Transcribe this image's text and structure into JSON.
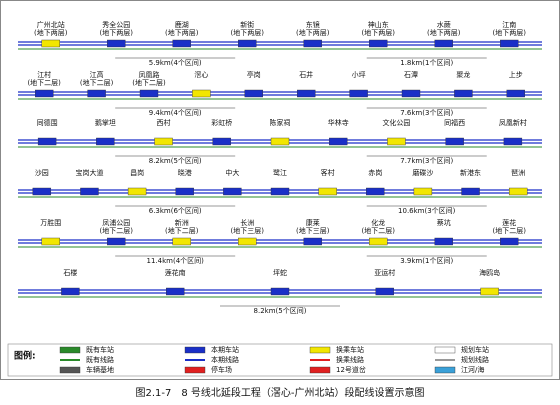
{
  "rows": [
    {
      "stations": [
        {
          "name": "广州北站",
          "level": "(地下两层)",
          "color": "#f2e600"
        },
        {
          "name": "秀全公园",
          "level": "(地下两层)",
          "color": "#1a2fc7"
        },
        {
          "name": "鹿湖",
          "level": "(地下两层)",
          "color": "#1a2fc7"
        },
        {
          "name": "新街",
          "level": "(地下两层)",
          "color": "#1a2fc7"
        },
        {
          "name": "东镜",
          "level": "(地下两层)",
          "color": "#1a2fc7"
        },
        {
          "name": "神山东",
          "level": "(地下两层)",
          "color": "#1a2fc7"
        },
        {
          "name": "水蕨",
          "level": "(地下两层)",
          "color": "#1a2fc7"
        },
        {
          "name": "江南",
          "level": "(地下两层)",
          "color": "#1a2fc7"
        }
      ],
      "distances": [
        "5.9km(4个区间)",
        "1.8km(1个区间)"
      ]
    },
    {
      "stations": [
        {
          "name": "江村",
          "level": "(地下二层)",
          "color": "#1a2fc7"
        },
        {
          "name": "江高",
          "level": "(地下二层)",
          "color": "#1a2fc7"
        },
        {
          "name": "凤凰路",
          "level": "(地下二层)",
          "color": "#1a2fc7"
        },
        {
          "name": "滘心",
          "level": "",
          "color": "#f2e600"
        },
        {
          "name": "亭岗",
          "level": "",
          "color": "#1a2fc7"
        },
        {
          "name": "石井",
          "level": "",
          "color": "#1a2fc7"
        },
        {
          "name": "小坪",
          "level": "",
          "color": "#1a2fc7"
        },
        {
          "name": "石潭",
          "level": "",
          "color": "#1a2fc7"
        },
        {
          "name": "聚龙",
          "level": "",
          "color": "#1a2fc7"
        },
        {
          "name": "上步",
          "level": "",
          "color": "#1a2fc7"
        }
      ],
      "distances": [
        "9.4km(4个区间)",
        "7.6km(3个区间)"
      ]
    },
    {
      "stations": [
        {
          "name": "同德围",
          "level": "",
          "color": "#1a2fc7"
        },
        {
          "name": "鹅掌坦",
          "level": "",
          "color": "#1a2fc7"
        },
        {
          "name": "西村",
          "level": "",
          "color": "#f2e600"
        },
        {
          "name": "彩虹桥",
          "level": "",
          "color": "#1a2fc7"
        },
        {
          "name": "陈家祠",
          "level": "",
          "color": "#f2e600"
        },
        {
          "name": "华林寺",
          "level": "",
          "color": "#1a2fc7"
        },
        {
          "name": "文化公园",
          "level": "",
          "color": "#f2e600"
        },
        {
          "name": "同福西",
          "level": "",
          "color": "#1a2fc7"
        },
        {
          "name": "凤凰新村",
          "level": "",
          "color": "#1a2fc7"
        }
      ],
      "distances": [
        "8.2km(5个区间)",
        "7.7km(3个区间)"
      ]
    },
    {
      "stations": [
        {
          "name": "沙园",
          "level": "",
          "color": "#1a2fc7"
        },
        {
          "name": "宝岗大道",
          "level": "",
          "color": "#1a2fc7"
        },
        {
          "name": "昌岗",
          "level": "",
          "color": "#f2e600"
        },
        {
          "name": "晓港",
          "level": "",
          "color": "#1a2fc7"
        },
        {
          "name": "中大",
          "level": "",
          "color": "#1a2fc7"
        },
        {
          "name": "鹭江",
          "level": "",
          "color": "#1a2fc7"
        },
        {
          "name": "客村",
          "level": "",
          "color": "#f2e600"
        },
        {
          "name": "赤岗",
          "level": "",
          "color": "#1a2fc7"
        },
        {
          "name": "磨碟沙",
          "level": "",
          "color": "#f2e600"
        },
        {
          "name": "新港东",
          "level": "",
          "color": "#1a2fc7"
        },
        {
          "name": "琶洲",
          "level": "",
          "color": "#f2e600"
        }
      ],
      "distances": [
        "6.3km(6个区间)",
        "10.6km(3个区间)"
      ]
    },
    {
      "stations": [
        {
          "name": "万胜围",
          "level": "",
          "color": "#f2e600"
        },
        {
          "name": "凤浦公园",
          "level": "(地下二层)",
          "color": "#1a2fc7"
        },
        {
          "name": "新洲",
          "level": "(地下二层)",
          "color": "#f2e600"
        },
        {
          "name": "长洲",
          "level": "(地下三层)",
          "color": "#f2e600"
        },
        {
          "name": "康莱",
          "level": "(地下三层)",
          "color": "#1a2fc7"
        },
        {
          "name": "化龙",
          "level": "(地下二层)",
          "color": "#f2e600"
        },
        {
          "name": "蔡坑",
          "level": "",
          "color": "#1a2fc7"
        },
        {
          "name": "莲花",
          "level": "(地下二层)",
          "color": "#1a2fc7"
        }
      ],
      "distances": [
        "11.4km(4个区间)",
        "3.9km(1个区间)"
      ]
    },
    {
      "stations": [
        {
          "name": "石楼",
          "level": "",
          "color": "#1a2fc7"
        },
        {
          "name": "莲花南",
          "level": "",
          "color": "#1a2fc7"
        },
        {
          "name": "坪蛇",
          "level": "",
          "color": "#1a2fc7"
        },
        {
          "name": "亚运村",
          "level": "",
          "color": "#1a2fc7"
        },
        {
          "name": "海鸥岛",
          "level": "",
          "color": "#f2e600"
        }
      ],
      "distances": [
        "8.2km(5个区间)"
      ]
    }
  ],
  "legend": {
    "title": "图例:",
    "items": [
      {
        "label": "既有车站",
        "color": "#2a8a2a"
      },
      {
        "label": "本期车站",
        "color": "#1a2fc7"
      },
      {
        "label": "换乘车站",
        "color": "#f2e600"
      },
      {
        "label": "规划车站",
        "color": "#ffffff"
      },
      {
        "label": "既有线路",
        "color": "#2a8a2a"
      },
      {
        "label": "本期线路",
        "color": "#1a2fc7"
      },
      {
        "label": "换乘线路",
        "color": "#e02020"
      },
      {
        "label": "规划线路",
        "color": "#999999"
      },
      {
        "label": "车辆基地",
        "color": "#555555"
      },
      {
        "label": "停车场",
        "color": "#e02020"
      },
      {
        "label": "12号道岔",
        "color": "#e02020"
      },
      {
        "label": "江河/海",
        "color": "#3aa0d8"
      }
    ]
  },
  "caption": "图2.1-7　8 号线北延段工程（滘心-广州北站）段配线设置示意图"
}
